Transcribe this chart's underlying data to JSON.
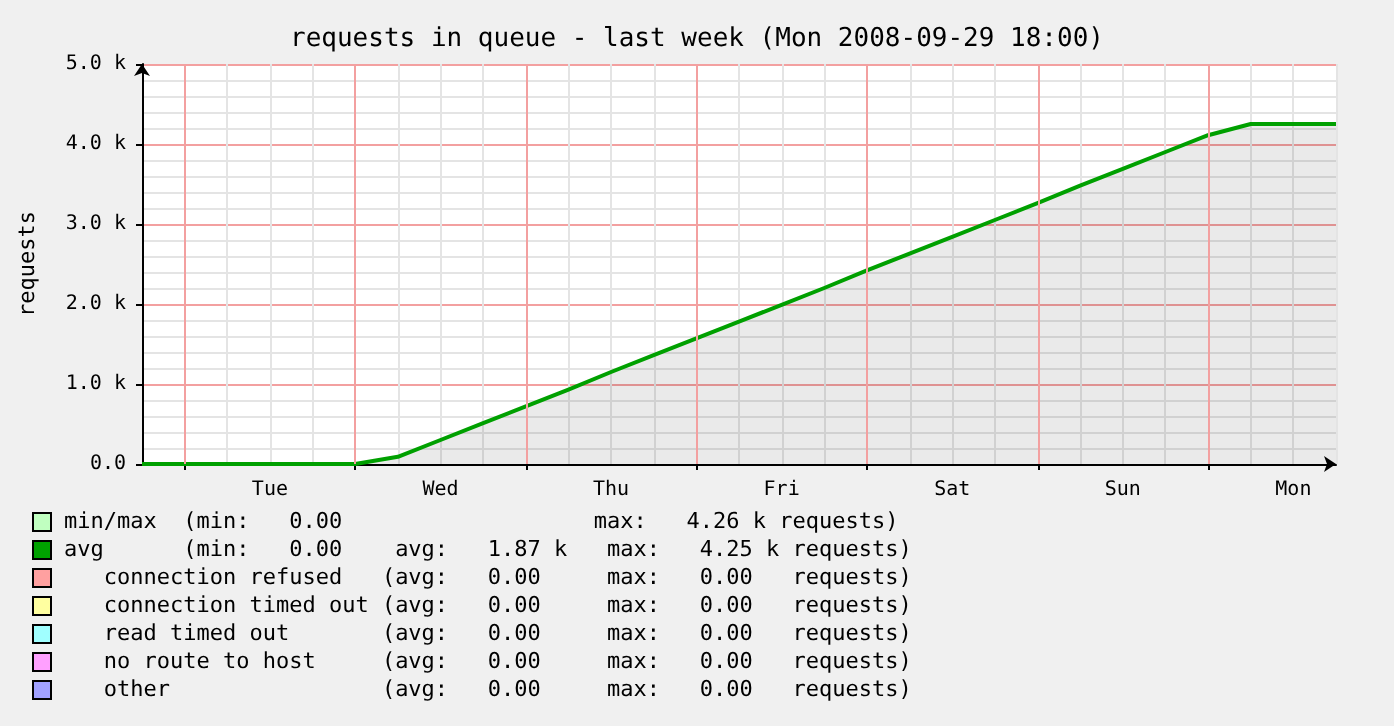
{
  "chart_data": {
    "type": "area",
    "title": "requests in queue - last week (Mon 2008-09-29 18:00)",
    "ylabel": "requests",
    "categories": [
      null,
      null,
      null,
      "Tue",
      null,
      null,
      null,
      "Wed",
      null,
      null,
      null,
      "Thu",
      null,
      null,
      null,
      "Fri",
      null,
      null,
      null,
      "Sat",
      null,
      null,
      null,
      "Sun",
      null,
      null,
      null,
      "Mon",
      null
    ],
    "series": [
      {
        "color": "#00a000",
        "values": [
          0,
          0,
          0,
          0,
          0,
          0,
          90,
          300,
          510,
          720,
          930,
          1150,
          1360,
          1570,
          1780,
          1990,
          2200,
          2420,
          2630,
          2840,
          3050,
          3260,
          3480,
          3690,
          3900,
          4110,
          4250,
          4250,
          4250
        ]
      }
    ],
    "ylim": [
      0,
      5000
    ],
    "yticks": [
      {
        "value": 0,
        "label": "0.0"
      },
      {
        "value": 1000,
        "label": "1.0 k"
      },
      {
        "value": 2000,
        "label": "2.0 k"
      },
      {
        "value": 3000,
        "label": "3.0 k"
      },
      {
        "value": 4000,
        "label": "4.0 k"
      },
      {
        "value": 5000,
        "label": "5.0 k"
      }
    ],
    "grid": true,
    "annotations": [
      "min/max  (min:   0.00                   max:   4.26 k requests)",
      "avg      (min:   0.00    avg:   1.87 k   max:   4.25 k requests)",
      "   connection refused   (avg:   0.00     max:   0.00   requests)",
      "   connection timed out (avg:   0.00     max:   0.00   requests)",
      "   read timed out       (avg:   0.00     max:   0.00   requests)",
      "   no route to host     (avg:   0.00     max:   0.00   requests)",
      "   other                (avg:   0.00     max:   0.00   requests)"
    ]
  }
}
